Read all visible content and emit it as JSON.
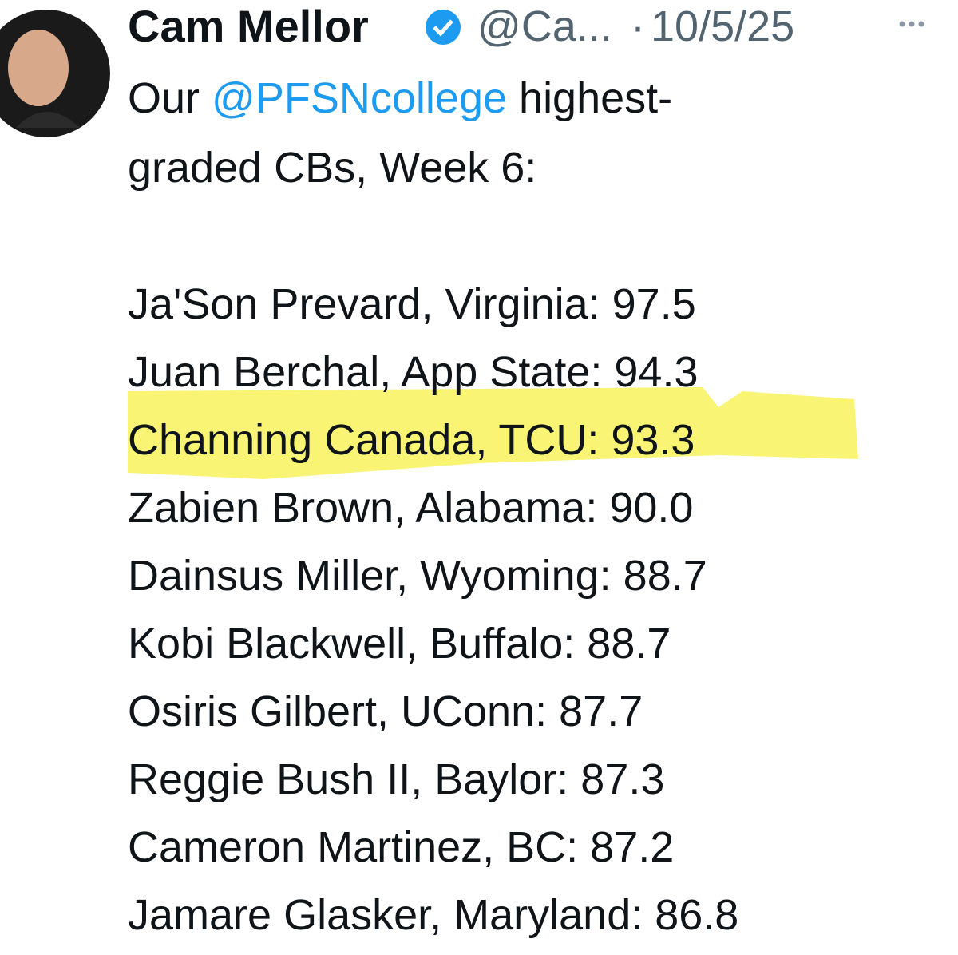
{
  "author": {
    "name": "Cam Mellor",
    "handle": "@Ca...",
    "separator": "·",
    "date": "10/5/25"
  },
  "tweet": {
    "intro": [
      "Our",
      "@PFSNcollege",
      "highest-",
      "graded CBs, Week 6:"
    ],
    "rows": [
      "Ja'Son Prevard, Virginia: 97.5",
      "Juan Berchal, App State: 94.3",
      "Channing Canada, TCU: 93.3",
      "Zabien Brown, Alabama: 90.0",
      "Dainsus Miller, Wyoming: 88.7",
      "Kobi Blackwell, Buffalo: 88.7",
      "Osiris Gilbert, UConn: 87.7",
      "Reggie Bush II, Baylor: 87.3",
      "Cameron Martinez, BC: 87.2",
      "Jamare Glasker, Maryland: 86.8"
    ]
  }
}
